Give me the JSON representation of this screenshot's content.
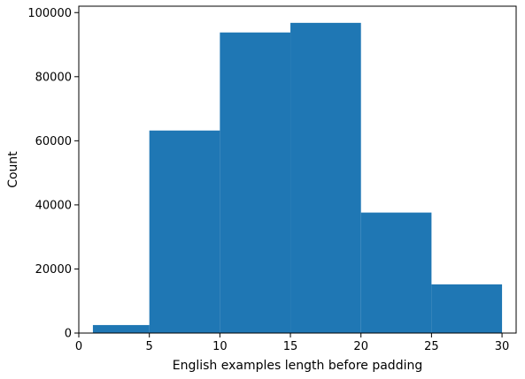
{
  "chart_data": {
    "type": "bar",
    "subtype": "histogram",
    "title": "",
    "xlabel": "English examples length before padding",
    "ylabel": "Count",
    "xlim": [
      0,
      31
    ],
    "ylim": [
      0,
      102000
    ],
    "xticks": [
      0,
      5,
      10,
      15,
      20,
      25,
      30
    ],
    "yticks": [
      0,
      20000,
      40000,
      60000,
      80000,
      100000
    ],
    "grid": false,
    "legend": "none",
    "bar_color": "#1f77b4",
    "bins": [
      {
        "x0": 1,
        "x1": 5,
        "value": 2500
      },
      {
        "x0": 5,
        "x1": 10,
        "value": 63200
      },
      {
        "x0": 10,
        "x1": 15,
        "value": 93800
      },
      {
        "x0": 15,
        "x1": 20,
        "value": 96800
      },
      {
        "x0": 20,
        "x1": 25,
        "value": 37600
      },
      {
        "x0": 25,
        "x1": 30,
        "value": 15200
      }
    ]
  }
}
